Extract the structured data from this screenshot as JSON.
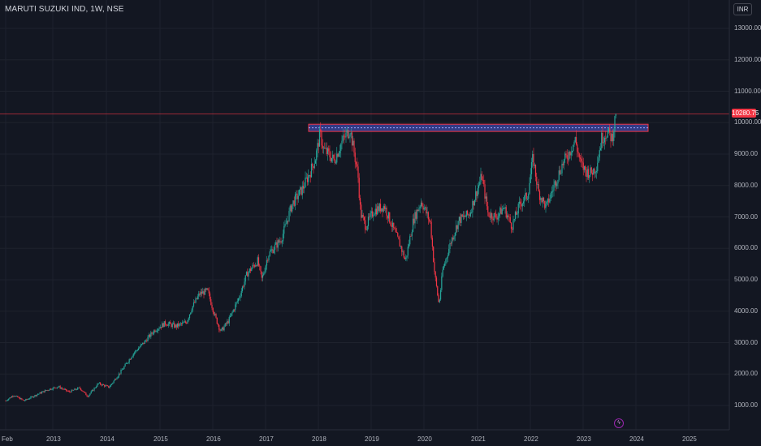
{
  "header": {
    "symbol_title": "MARUTI SUZUKI IND, 1W, NSE",
    "currency_button": "INR"
  },
  "colors": {
    "background": "#131722",
    "up": "#26a69a",
    "down": "#f23645",
    "zone_fill": "#3f48a8",
    "zone_border": "#f23645",
    "grid": "#1e222d"
  },
  "icons": {
    "event": "lightning-icon"
  },
  "last_price_label": "10280.75",
  "chart_data": {
    "type": "candlestick",
    "title": "MARUTI SUZUKI IND, 1W, NSE",
    "interval": "1W",
    "exchange": "NSE",
    "currency": "INR",
    "x_tick_labels": [
      "Feb",
      "2013",
      "2014",
      "2015",
      "2016",
      "2017",
      "2018",
      "2019",
      "2020",
      "2021",
      "2022",
      "2023",
      "2024",
      "2025"
    ],
    "y_tick_labels": [
      "13000.00",
      "12000.00",
      "11000.00",
      "10000.00",
      "9000.00",
      "8000.00",
      "7000.00",
      "6000.00",
      "5000.00",
      "4000.00",
      "3000.00",
      "2000.00",
      "1000.00"
    ],
    "x_range": [
      2012.1,
      2025.9
    ],
    "y_range": [
      600,
      13500
    ],
    "grid": true,
    "last_price": 10280.75,
    "resistance_zone": {
      "low": 9720,
      "high": 9950
    },
    "price_path": [
      [
        2012.1,
        1150
      ],
      [
        2012.25,
        1330
      ],
      [
        2012.45,
        1150
      ],
      [
        2012.7,
        1350
      ],
      [
        2012.9,
        1500
      ],
      [
        2013.1,
        1600
      ],
      [
        2013.3,
        1430
      ],
      [
        2013.5,
        1560
      ],
      [
        2013.65,
        1290
      ],
      [
        2013.85,
        1700
      ],
      [
        2014.05,
        1580
      ],
      [
        2014.3,
        2150
      ],
      [
        2014.5,
        2650
      ],
      [
        2014.7,
        3000
      ],
      [
        2014.9,
        3400
      ],
      [
        2015.1,
        3620
      ],
      [
        2015.3,
        3520
      ],
      [
        2015.5,
        3650
      ],
      [
        2015.6,
        4100
      ],
      [
        2015.75,
        4550
      ],
      [
        2015.9,
        4650
      ],
      [
        2016.05,
        3800
      ],
      [
        2016.15,
        3350
      ],
      [
        2016.3,
        3700
      ],
      [
        2016.5,
        4450
      ],
      [
        2016.65,
        5200
      ],
      [
        2016.85,
        5600
      ],
      [
        2016.93,
        5000
      ],
      [
        2017.05,
        5800
      ],
      [
        2017.3,
        6300
      ],
      [
        2017.5,
        7400
      ],
      [
        2017.7,
        7900
      ],
      [
        2017.85,
        8450
      ],
      [
        2017.95,
        8900
      ],
      [
        2018.03,
        9650
      ],
      [
        2018.1,
        9150
      ],
      [
        2018.3,
        8800
      ],
      [
        2018.45,
        9400
      ],
      [
        2018.6,
        9800
      ],
      [
        2018.75,
        8350
      ],
      [
        2018.8,
        7100
      ],
      [
        2018.9,
        6700
      ],
      [
        2019.05,
        7200
      ],
      [
        2019.25,
        7350
      ],
      [
        2019.4,
        6700
      ],
      [
        2019.55,
        6100
      ],
      [
        2019.65,
        5600
      ],
      [
        2019.8,
        6900
      ],
      [
        2019.95,
        7500
      ],
      [
        2020.05,
        7100
      ],
      [
        2020.12,
        6800
      ],
      [
        2020.2,
        5200
      ],
      [
        2020.28,
        4200
      ],
      [
        2020.35,
        5300
      ],
      [
        2020.5,
        6200
      ],
      [
        2020.65,
        6900
      ],
      [
        2020.85,
        7100
      ],
      [
        2020.98,
        7800
      ],
      [
        2021.08,
        8300
      ],
      [
        2021.2,
        7100
      ],
      [
        2021.35,
        7000
      ],
      [
        2021.5,
        7300
      ],
      [
        2021.65,
        6700
      ],
      [
        2021.8,
        7400
      ],
      [
        2021.95,
        7700
      ],
      [
        2022.05,
        8900
      ],
      [
        2022.15,
        7800
      ],
      [
        2022.3,
        7300
      ],
      [
        2022.45,
        8000
      ],
      [
        2022.6,
        8650
      ],
      [
        2022.75,
        9100
      ],
      [
        2022.85,
        9450
      ],
      [
        2022.95,
        8700
      ],
      [
        2023.05,
        8450
      ],
      [
        2023.15,
        8400
      ],
      [
        2023.25,
        8600
      ],
      [
        2023.35,
        9500
      ],
      [
        2023.45,
        9700
      ],
      [
        2023.55,
        9500
      ],
      [
        2023.62,
        10280
      ]
    ]
  }
}
